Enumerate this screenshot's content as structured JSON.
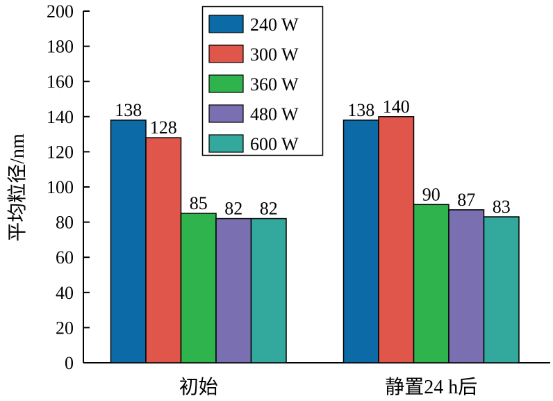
{
  "chart_data": {
    "type": "bar",
    "title": "",
    "xlabel": "",
    "ylabel": "平均粒径/nm",
    "ylim": [
      0,
      200
    ],
    "yticks": [
      0,
      20,
      40,
      60,
      80,
      100,
      120,
      140,
      160,
      180,
      200
    ],
    "grid": false,
    "legend_position": "top-center",
    "categories": [
      "初始",
      "静置24 h后"
    ],
    "series": [
      {
        "name": "240 W",
        "color": "#0c6aa6",
        "values": [
          138,
          138
        ]
      },
      {
        "name": "300 W",
        "color": "#e0564a",
        "values": [
          128,
          140
        ]
      },
      {
        "name": "360 W",
        "color": "#2fb34d",
        "values": [
          85,
          90
        ]
      },
      {
        "name": "480 W",
        "color": "#7a6fb0",
        "values": [
          82,
          87
        ]
      },
      {
        "name": "600 W",
        "color": "#33a89c",
        "values": [
          82,
          83
        ]
      }
    ]
  }
}
